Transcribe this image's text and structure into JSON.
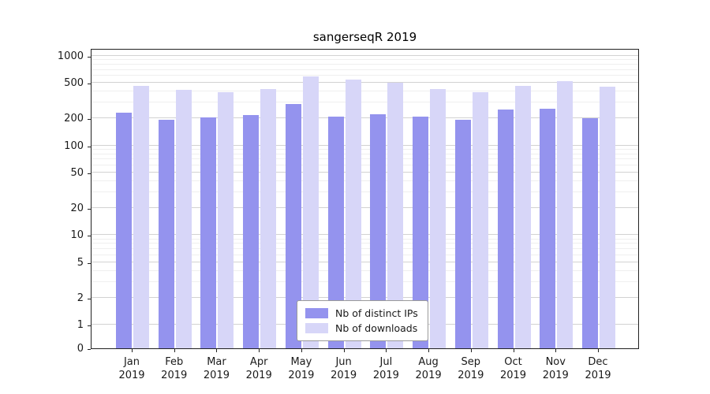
{
  "chart_data": {
    "type": "bar",
    "title": "sangerseqR 2019",
    "categories": [
      "Jan",
      "Feb",
      "Mar",
      "Apr",
      "May",
      "Jun",
      "Jul",
      "Aug",
      "Sep",
      "Oct",
      "Nov",
      "Dec"
    ],
    "category_year": "2019",
    "series": [
      {
        "name": "Nb of distinct IPs",
        "color": "#9493ee",
        "values": [
          230,
          195,
          205,
          220,
          290,
          210,
          225,
          210,
          195,
          250,
          255,
          200
        ]
      },
      {
        "name": "Nb of downloads",
        "color": "#d7d6f8",
        "values": [
          460,
          415,
          390,
          425,
          590,
          540,
          505,
          430,
          395,
          465,
          525,
          450
        ]
      }
    ],
    "y_ticks": [
      0,
      1,
      2,
      5,
      10,
      20,
      50,
      100,
      200,
      500,
      1000
    ],
    "y_scale": "log",
    "ylim": [
      0,
      1000
    ],
    "xlabel": "",
    "ylabel": "",
    "grid": "horizontal major + faint minor",
    "legend_position": "inside lower center",
    "colors": {
      "grid_major": "#d2d2d2",
      "grid_minor": "#efefef",
      "axis": "#222222",
      "background": "#ffffff"
    }
  }
}
